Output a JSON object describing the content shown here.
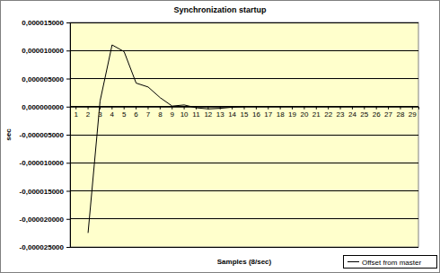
{
  "chart_data": {
    "type": "line",
    "title": "Synchronization startup",
    "x_label": "Samples (8/sec)",
    "y_label": "sec",
    "categories": [
      "1",
      "2",
      "3",
      "4",
      "5",
      "6",
      "7",
      "8",
      "9",
      "10",
      "11",
      "12",
      "13",
      "14",
      "15",
      "16",
      "17",
      "18",
      "19",
      "20",
      "21",
      "22",
      "23",
      "24",
      "25",
      "26",
      "27",
      "28",
      "29"
    ],
    "series": [
      {
        "name": "Offset from master",
        "color": "#000000",
        "values": [
          null,
          -2.25e-05,
          1e-06,
          1.1e-05,
          9.8e-06,
          4.2e-06,
          3.5e-06,
          1.6e-06,
          1e-07,
          3e-07,
          -2e-07,
          -4e-07,
          -3e-07,
          -1e-07,
          0.0,
          null,
          null,
          null,
          null,
          null,
          null,
          null,
          null,
          null,
          null,
          null,
          null,
          null,
          null
        ]
      }
    ],
    "ylim": [
      -2.5e-05,
      1.5e-05
    ],
    "yticks": [
      {
        "value": -2.5e-05,
        "label": "-0,000025000"
      },
      {
        "value": -2e-05,
        "label": "-0,000020000"
      },
      {
        "value": -1.5e-05,
        "label": "-0,000015000"
      },
      {
        "value": -1e-05,
        "label": "-0,000010000"
      },
      {
        "value": -5e-06,
        "label": "-0,000005000"
      },
      {
        "value": 0,
        "label": "0,000000000"
      },
      {
        "value": 5e-06,
        "label": "0,000005000"
      },
      {
        "value": 1e-05,
        "label": "0,000010000"
      },
      {
        "value": 1.5e-05,
        "label": "0,000015000"
      }
    ],
    "grid": true,
    "legend": "bottom-right"
  }
}
